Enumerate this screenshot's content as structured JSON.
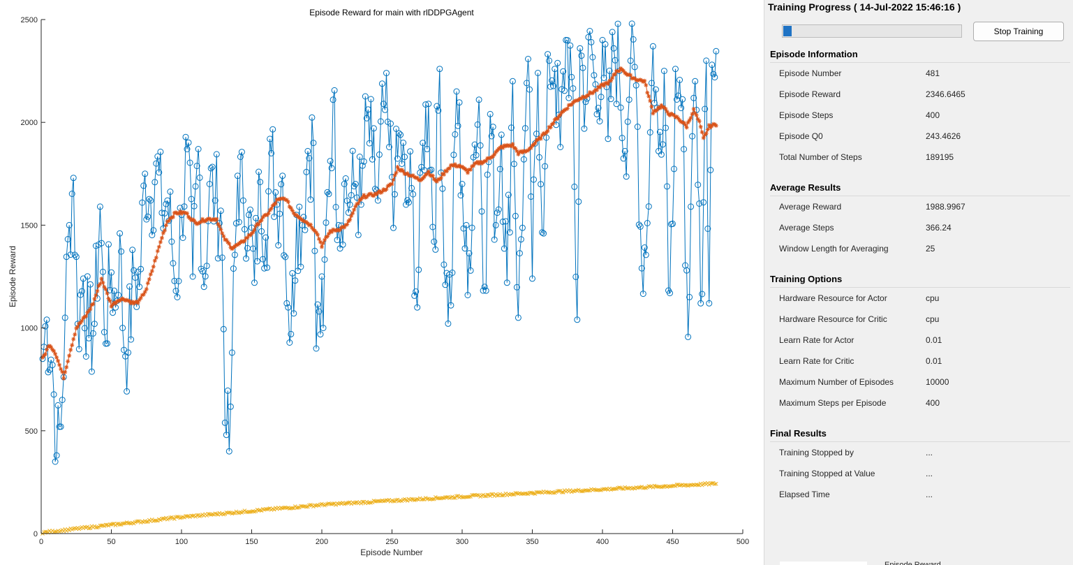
{
  "chart_data": {
    "type": "line",
    "title": "Episode Reward for main with rlDDPGAgent",
    "xlabel": "Episode Number",
    "ylabel": "Episode Reward",
    "xlim": [
      0,
      500
    ],
    "ylim": [
      0,
      2500
    ],
    "xticks": [
      0,
      50,
      100,
      150,
      200,
      250,
      300,
      350,
      400,
      450,
      500
    ],
    "yticks": [
      0,
      500,
      1000,
      1500,
      2000,
      2500
    ],
    "grid": false,
    "legend": "none",
    "episodes": 481,
    "series": [
      {
        "marker": "circle",
        "color": "#0072bd",
        "anchors": [
          [
            1,
            850
          ],
          [
            4,
            1040
          ],
          [
            8,
            820
          ],
          [
            11,
            380
          ],
          [
            14,
            520
          ],
          [
            17,
            1050
          ],
          [
            20,
            1500
          ],
          [
            23,
            1730
          ],
          [
            26,
            1020
          ],
          [
            30,
            1240
          ],
          [
            34,
            950
          ],
          [
            38,
            1020
          ],
          [
            42,
            1590
          ],
          [
            45,
            980
          ],
          [
            50,
            1270
          ],
          [
            53,
            1100
          ],
          [
            56,
            1460
          ],
          [
            58,
            1000
          ],
          [
            62,
            880
          ],
          [
            66,
            1280
          ],
          [
            70,
            1200
          ],
          [
            74,
            1750
          ],
          [
            78,
            1620
          ],
          [
            82,
            1800
          ],
          [
            86,
            1560
          ],
          [
            90,
            1620
          ],
          [
            93,
            1420
          ],
          [
            96,
            1180
          ],
          [
            100,
            1550
          ],
          [
            104,
            1870
          ],
          [
            108,
            1250
          ],
          [
            112,
            1870
          ],
          [
            116,
            1200
          ],
          [
            120,
            1700
          ],
          [
            124,
            1620
          ],
          [
            128,
            1570
          ],
          [
            132,
            480
          ],
          [
            134,
            400
          ],
          [
            136,
            880
          ],
          [
            140,
            1740
          ],
          [
            144,
            1620
          ],
          [
            148,
            1550
          ],
          [
            152,
            1220
          ],
          [
            156,
            1710
          ],
          [
            160,
            1440
          ],
          [
            164,
            1850
          ],
          [
            168,
            1600
          ],
          [
            172,
            1740
          ],
          [
            176,
            1100
          ],
          [
            178,
            970
          ],
          [
            182,
            1550
          ],
          [
            186,
            1500
          ],
          [
            190,
            1860
          ],
          [
            194,
            1900
          ],
          [
            196,
            900
          ],
          [
            198,
            1080
          ],
          [
            201,
            1000
          ],
          [
            204,
            1660
          ],
          [
            208,
            2110
          ],
          [
            212,
            1500
          ],
          [
            216,
            1700
          ],
          [
            220,
            1600
          ],
          [
            224,
            1700
          ],
          [
            228,
            1600
          ],
          [
            232,
            2020
          ],
          [
            236,
            1820
          ],
          [
            240,
            1620
          ],
          [
            244,
            2090
          ],
          [
            248,
            1880
          ],
          [
            252,
            1650
          ],
          [
            256,
            1940
          ],
          [
            260,
            1600
          ],
          [
            264,
            1680
          ],
          [
            268,
            1100
          ],
          [
            272,
            1900
          ],
          [
            276,
            2090
          ],
          [
            280,
            1420
          ],
          [
            284,
            2260
          ],
          [
            288,
            1210
          ],
          [
            292,
            1110
          ],
          [
            296,
            2150
          ],
          [
            300,
            1700
          ],
          [
            304,
            1160
          ],
          [
            308,
            1830
          ],
          [
            312,
            2110
          ],
          [
            316,
            1200
          ],
          [
            320,
            2040
          ],
          [
            324,
            1500
          ],
          [
            328,
            1940
          ],
          [
            332,
            1220
          ],
          [
            336,
            2200
          ],
          [
            340,
            1050
          ],
          [
            344,
            1820
          ],
          [
            348,
            2160
          ],
          [
            350,
            1240
          ],
          [
            354,
            2240
          ],
          [
            358,
            1460
          ],
          [
            362,
            2300
          ],
          [
            366,
            2260
          ],
          [
            370,
            1880
          ],
          [
            374,
            2400
          ],
          [
            378,
            2220
          ],
          [
            382,
            1040
          ],
          [
            384,
            2360
          ],
          [
            388,
            2100
          ],
          [
            392,
            2390
          ],
          [
            396,
            2040
          ],
          [
            400,
            2400
          ],
          [
            404,
            1920
          ],
          [
            408,
            2360
          ],
          [
            412,
            2250
          ],
          [
            416,
            1860
          ],
          [
            420,
            2300
          ],
          [
            424,
            2180
          ],
          [
            428,
            1290
          ],
          [
            432,
            1510
          ],
          [
            436,
            2370
          ],
          [
            440,
            1860
          ],
          [
            444,
            2250
          ],
          [
            448,
            1170
          ],
          [
            452,
            2260
          ],
          [
            456,
            2070
          ],
          [
            460,
            1280
          ],
          [
            462,
            1150
          ],
          [
            466,
            2200
          ],
          [
            470,
            1120
          ],
          [
            474,
            2300
          ],
          [
            476,
            1120
          ],
          [
            478,
            2280
          ],
          [
            481,
            2346
          ]
        ]
      },
      {
        "marker": "asterisk",
        "color": "#d95319",
        "name": "Average Reward",
        "anchors": [
          [
            1,
            850
          ],
          [
            6,
            920
          ],
          [
            10,
            880
          ],
          [
            16,
            760
          ],
          [
            20,
            870
          ],
          [
            25,
            1000
          ],
          [
            32,
            1060
          ],
          [
            37,
            1120
          ],
          [
            43,
            1240
          ],
          [
            50,
            1110
          ],
          [
            56,
            1140
          ],
          [
            60,
            1140
          ],
          [
            66,
            1120
          ],
          [
            70,
            1130
          ],
          [
            75,
            1190
          ],
          [
            80,
            1300
          ],
          [
            86,
            1440
          ],
          [
            90,
            1520
          ],
          [
            96,
            1560
          ],
          [
            103,
            1560
          ],
          [
            110,
            1510
          ],
          [
            118,
            1530
          ],
          [
            125,
            1530
          ],
          [
            130,
            1440
          ],
          [
            136,
            1390
          ],
          [
            142,
            1410
          ],
          [
            150,
            1460
          ],
          [
            156,
            1520
          ],
          [
            162,
            1560
          ],
          [
            168,
            1620
          ],
          [
            174,
            1630
          ],
          [
            180,
            1560
          ],
          [
            186,
            1530
          ],
          [
            192,
            1500
          ],
          [
            196,
            1470
          ],
          [
            200,
            1400
          ],
          [
            206,
            1470
          ],
          [
            212,
            1480
          ],
          [
            218,
            1500
          ],
          [
            225,
            1600
          ],
          [
            230,
            1640
          ],
          [
            238,
            1650
          ],
          [
            244,
            1670
          ],
          [
            250,
            1700
          ],
          [
            254,
            1780
          ],
          [
            258,
            1760
          ],
          [
            264,
            1740
          ],
          [
            270,
            1720
          ],
          [
            276,
            1760
          ],
          [
            282,
            1710
          ],
          [
            288,
            1760
          ],
          [
            292,
            1790
          ],
          [
            298,
            1790
          ],
          [
            304,
            1760
          ],
          [
            310,
            1800
          ],
          [
            316,
            1810
          ],
          [
            322,
            1840
          ],
          [
            328,
            1880
          ],
          [
            336,
            1890
          ],
          [
            340,
            1850
          ],
          [
            346,
            1860
          ],
          [
            352,
            1900
          ],
          [
            358,
            1940
          ],
          [
            364,
            1990
          ],
          [
            370,
            2040
          ],
          [
            376,
            2080
          ],
          [
            382,
            2110
          ],
          [
            388,
            2130
          ],
          [
            394,
            2150
          ],
          [
            400,
            2180
          ],
          [
            406,
            2200
          ],
          [
            410,
            2250
          ],
          [
            414,
            2260
          ],
          [
            418,
            2230
          ],
          [
            424,
            2210
          ],
          [
            430,
            2200
          ],
          [
            436,
            2050
          ],
          [
            442,
            2080
          ],
          [
            448,
            2040
          ],
          [
            454,
            2020
          ],
          [
            460,
            1980
          ],
          [
            465,
            2060
          ],
          [
            469,
            2000
          ],
          [
            472,
            1920
          ],
          [
            476,
            1980
          ],
          [
            481,
            1990
          ]
        ]
      },
      {
        "marker": "cross",
        "color": "#edb120",
        "name": "Episode Q0",
        "anchors": [
          [
            1,
            5
          ],
          [
            100,
            80
          ],
          [
            200,
            140
          ],
          [
            300,
            180
          ],
          [
            400,
            215
          ],
          [
            481,
            243
          ]
        ]
      }
    ]
  },
  "panel": {
    "title": "Training Progress ( 14-Jul-2022 15:46:16 )",
    "progress_fraction": 0.048,
    "stop_button": "Stop Training",
    "sections": [
      {
        "title": "Episode Information",
        "rows": [
          {
            "label": "Episode Number",
            "value": "481"
          },
          {
            "label": "Episode Reward",
            "value": "2346.6465"
          },
          {
            "label": "Episode Steps",
            "value": "400"
          },
          {
            "label": "Episode Q0",
            "value": "243.4626"
          },
          {
            "label": "Total Number of Steps",
            "value": "189195"
          }
        ]
      },
      {
        "title": "Average Results",
        "rows": [
          {
            "label": "Average Reward",
            "value": "1988.9967"
          },
          {
            "label": "Average Steps",
            "value": "366.24"
          },
          {
            "label": "Window Length for Averaging",
            "value": "25"
          }
        ]
      },
      {
        "title": "Training Options",
        "rows": [
          {
            "label": "Hardware Resource for Actor",
            "value": "cpu"
          },
          {
            "label": "Hardware Resource for Critic",
            "value": "cpu"
          },
          {
            "label": "Learn Rate for Actor",
            "value": "0.01"
          },
          {
            "label": "Learn Rate for Critic",
            "value": "0.01"
          },
          {
            "label": "Maximum Number of Episodes",
            "value": "10000"
          },
          {
            "label": "Maximum Steps per Episode",
            "value": "400"
          }
        ]
      },
      {
        "title": "Final Results",
        "rows": [
          {
            "label": "Training Stopped by",
            "value": "..."
          },
          {
            "label": "Training Stopped at Value",
            "value": "..."
          },
          {
            "label": "Elapsed Time",
            "value": "..."
          }
        ]
      }
    ],
    "bottom_label": "Episode Reward"
  }
}
